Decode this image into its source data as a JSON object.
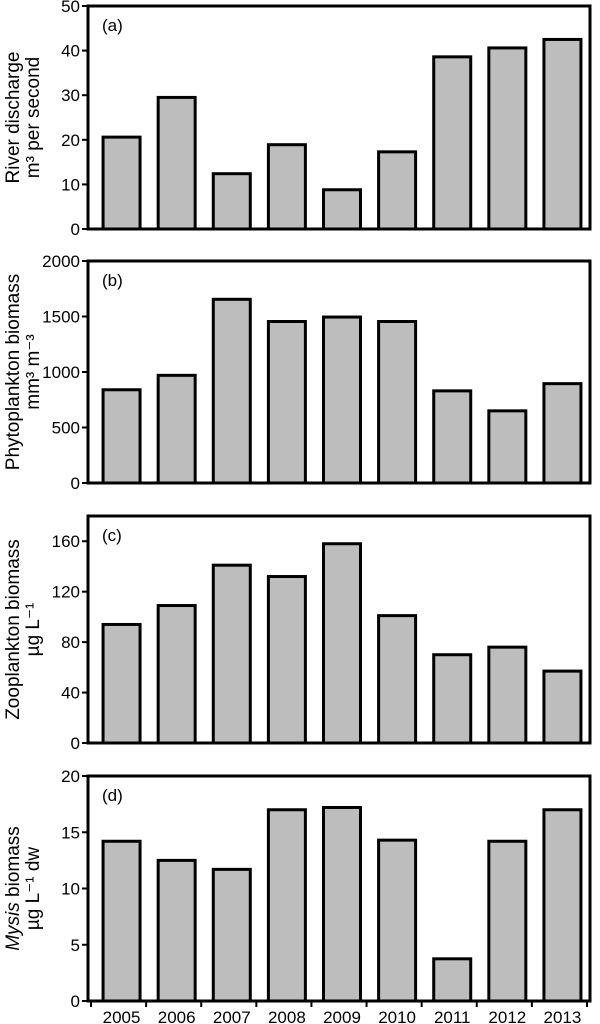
{
  "chart_data": [
    {
      "type": "bar",
      "panel_label": "(a)",
      "ylabel_line1": "River discharge",
      "ylabel_line2": "m³ per second",
      "categories": [
        "2005",
        "2006",
        "2007",
        "2008",
        "2009",
        "2010",
        "2011",
        "2012",
        "2013"
      ],
      "values": [
        20.6,
        29.5,
        12.4,
        18.9,
        8.8,
        17.3,
        38.6,
        40.6,
        42.5
      ],
      "ylim": [
        0,
        50
      ],
      "yticks": [
        "0",
        "10",
        "20",
        "30",
        "40",
        "50"
      ],
      "ytick_values": [
        0,
        10,
        20,
        30,
        40,
        50
      ]
    },
    {
      "type": "bar",
      "panel_label": "(b)",
      "ylabel_line1": "Phytoplankton biomass",
      "ylabel_line2": "mm³ m⁻³",
      "categories": [
        "2005",
        "2006",
        "2007",
        "2008",
        "2009",
        "2010",
        "2011",
        "2012",
        "2013"
      ],
      "values": [
        840,
        970,
        1655,
        1455,
        1495,
        1455,
        830,
        650,
        895
      ],
      "ylim": [
        0,
        2000
      ],
      "yticks": [
        "0",
        "500",
        "1000",
        "1500",
        "2000"
      ],
      "ytick_values": [
        0,
        500,
        1000,
        1500,
        2000
      ]
    },
    {
      "type": "bar",
      "panel_label": "(c)",
      "ylabel_line1": "Zooplankton biomass",
      "ylabel_line2": "µg L⁻¹",
      "categories": [
        "2005",
        "2006",
        "2007",
        "2008",
        "2009",
        "2010",
        "2011",
        "2012",
        "2013"
      ],
      "values": [
        94,
        109,
        141,
        132,
        158,
        101,
        70,
        76,
        57
      ],
      "ylim": [
        0,
        180
      ],
      "yticks": [
        "0",
        "40",
        "80",
        "120",
        "160"
      ],
      "ytick_values": [
        0,
        40,
        80,
        120,
        160
      ]
    },
    {
      "type": "bar",
      "panel_label": "(d)",
      "ylabel_italic": "Mysis",
      "ylabel_line1": " biomass",
      "ylabel_line2": "µg L⁻¹ dw",
      "categories": [
        "2005",
        "2006",
        "2007",
        "2008",
        "2009",
        "2010",
        "2011",
        "2012",
        "2013"
      ],
      "values": [
        14.2,
        12.5,
        11.7,
        17.0,
        17.2,
        14.3,
        3.75,
        14.2,
        17.0
      ],
      "ylim": [
        0,
        20
      ],
      "yticks": [
        "0",
        "5",
        "10",
        "15",
        "20"
      ],
      "ytick_values": [
        0,
        5,
        10,
        15,
        20
      ],
      "show_xticklabels": true
    }
  ],
  "colors": {
    "bar_fill": "#bdbdbd",
    "bar_stroke": "#000000"
  }
}
